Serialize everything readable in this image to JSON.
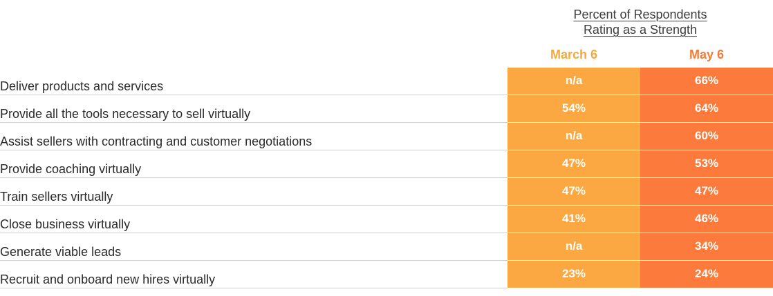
{
  "chart_data": {
    "type": "table",
    "title_lines": [
      "Percent of Respondents",
      "Rating as a Strength"
    ],
    "columns": [
      "March 6",
      "May 6"
    ],
    "rows": [
      {
        "label": "Deliver products and services",
        "values": [
          "n/a",
          "66%"
        ]
      },
      {
        "label": "Provide all the tools necessary to sell virtually",
        "values": [
          "54%",
          "64%"
        ]
      },
      {
        "label": "Assist sellers with contracting and customer negotiations",
        "values": [
          "n/a",
          "60%"
        ]
      },
      {
        "label": "Provide coaching virtually",
        "values": [
          "47%",
          "53%"
        ]
      },
      {
        "label": "Train sellers virtually",
        "values": [
          "47%",
          "47%"
        ]
      },
      {
        "label": "Close business virtually",
        "values": [
          "41%",
          "46%"
        ]
      },
      {
        "label": "Generate viable leads",
        "values": [
          "n/a",
          "34%"
        ]
      },
      {
        "label": "Recruit and onboard new hires virtually",
        "values": [
          "23%",
          "24%"
        ]
      }
    ],
    "colors": {
      "march": "#fba842",
      "may": "#fc7a3c",
      "march_header": "#f6a93b",
      "may_header": "#f47a36"
    }
  }
}
